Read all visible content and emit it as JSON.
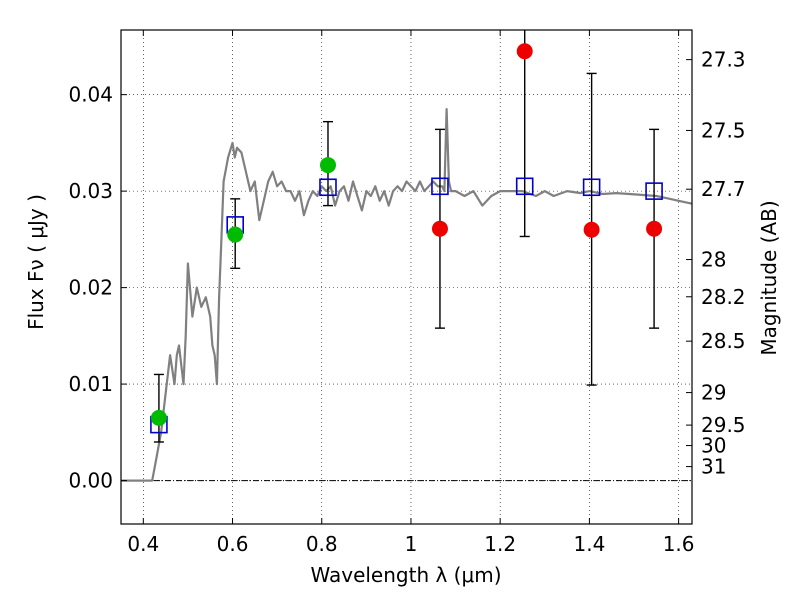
{
  "chart_data": {
    "type": "scatter",
    "xlabel": "Wavelength  λ (μm)",
    "ylabel_left": "Flux  Fν  ( μJy )",
    "ylabel_right": "Magnitude (AB)",
    "xlim": [
      0.35,
      1.63
    ],
    "ylim": [
      -0.0045,
      0.0467
    ],
    "grid": true,
    "x_ticks": [
      0.4,
      0.6,
      0.8,
      1.0,
      1.2,
      1.4,
      1.6
    ],
    "x_tick_labels": [
      "0.4",
      "0.6",
      "0.8",
      "1",
      "1.2",
      "1.4",
      "1.6"
    ],
    "y_ticks": [
      0.0,
      0.01,
      0.02,
      0.03,
      0.04
    ],
    "y_tick_labels": [
      "0.00",
      "0.01",
      "0.02",
      "0.03",
      "0.04"
    ],
    "right_ticks": [
      {
        "flux": 0.04363,
        "label": "27.3"
      },
      {
        "flux": 0.03629,
        "label": "27.5"
      },
      {
        "flux": 0.0302,
        "label": "27.7"
      },
      {
        "flux": 0.02291,
        "label": "28"
      },
      {
        "flux": 0.01905,
        "label": "28.2"
      },
      {
        "flux": 0.01445,
        "label": "28.5"
      },
      {
        "flux": 0.00912,
        "label": "29"
      },
      {
        "flux": 0.00575,
        "label": "29.5"
      },
      {
        "flux": 0.00363,
        "label": "30"
      },
      {
        "flux": 0.00145,
        "label": "31"
      }
    ],
    "model_spectrum": {
      "color": "#808080",
      "points": [
        [
          0.35,
          0.0
        ],
        [
          0.42,
          0.0
        ],
        [
          0.43,
          0.0025
        ],
        [
          0.44,
          0.005
        ],
        [
          0.45,
          0.009
        ],
        [
          0.46,
          0.013
        ],
        [
          0.47,
          0.01
        ],
        [
          0.475,
          0.013
        ],
        [
          0.48,
          0.014
        ],
        [
          0.49,
          0.01
        ],
        [
          0.495,
          0.015
        ],
        [
          0.5,
          0.0225
        ],
        [
          0.51,
          0.017
        ],
        [
          0.52,
          0.02
        ],
        [
          0.53,
          0.018
        ],
        [
          0.54,
          0.019
        ],
        [
          0.55,
          0.017
        ],
        [
          0.555,
          0.014
        ],
        [
          0.56,
          0.013
        ],
        [
          0.565,
          0.01
        ],
        [
          0.57,
          0.019
        ],
        [
          0.575,
          0.025
        ],
        [
          0.58,
          0.031
        ],
        [
          0.59,
          0.0335
        ],
        [
          0.6,
          0.035
        ],
        [
          0.605,
          0.0335
        ],
        [
          0.61,
          0.0345
        ],
        [
          0.62,
          0.034
        ],
        [
          0.63,
          0.032
        ],
        [
          0.64,
          0.03
        ],
        [
          0.65,
          0.031
        ],
        [
          0.66,
          0.027
        ],
        [
          0.67,
          0.029
        ],
        [
          0.68,
          0.031
        ],
        [
          0.69,
          0.032
        ],
        [
          0.7,
          0.0305
        ],
        [
          0.71,
          0.031
        ],
        [
          0.72,
          0.03
        ],
        [
          0.73,
          0.03
        ],
        [
          0.74,
          0.029
        ],
        [
          0.75,
          0.03
        ],
        [
          0.76,
          0.0275
        ],
        [
          0.77,
          0.029
        ],
        [
          0.78,
          0.03
        ],
        [
          0.79,
          0.0295
        ],
        [
          0.8,
          0.0305
        ],
        [
          0.81,
          0.03
        ],
        [
          0.82,
          0.0305
        ],
        [
          0.83,
          0.0285
        ],
        [
          0.84,
          0.03
        ],
        [
          0.85,
          0.0305
        ],
        [
          0.86,
          0.029
        ],
        [
          0.87,
          0.031
        ],
        [
          0.88,
          0.0295
        ],
        [
          0.89,
          0.028
        ],
        [
          0.9,
          0.03
        ],
        [
          0.91,
          0.0295
        ],
        [
          0.92,
          0.0305
        ],
        [
          0.93,
          0.029
        ],
        [
          0.94,
          0.03
        ],
        [
          0.95,
          0.0285
        ],
        [
          0.96,
          0.03
        ],
        [
          0.97,
          0.0305
        ],
        [
          0.98,
          0.03
        ],
        [
          0.99,
          0.031
        ],
        [
          1.0,
          0.0305
        ],
        [
          1.01,
          0.03
        ],
        [
          1.02,
          0.031
        ],
        [
          1.03,
          0.03
        ],
        [
          1.04,
          0.0305
        ],
        [
          1.05,
          0.031
        ],
        [
          1.06,
          0.0305
        ],
        [
          1.07,
          0.0305
        ],
        [
          1.075,
          0.03
        ],
        [
          1.08,
          0.0385
        ],
        [
          1.085,
          0.031
        ],
        [
          1.09,
          0.03
        ],
        [
          1.1,
          0.03
        ],
        [
          1.12,
          0.0295
        ],
        [
          1.14,
          0.03
        ],
        [
          1.16,
          0.0285
        ],
        [
          1.18,
          0.0295
        ],
        [
          1.2,
          0.03
        ],
        [
          1.22,
          0.03
        ],
        [
          1.25,
          0.03
        ],
        [
          1.28,
          0.0295
        ],
        [
          1.3,
          0.03
        ],
        [
          1.32,
          0.0295
        ],
        [
          1.35,
          0.03
        ],
        [
          1.38,
          0.0298
        ],
        [
          1.4,
          0.03
        ],
        [
          1.43,
          0.0297
        ],
        [
          1.46,
          0.0298
        ],
        [
          1.49,
          0.0297
        ],
        [
          1.52,
          0.0296
        ],
        [
          1.55,
          0.0295
        ],
        [
          1.58,
          0.0292
        ],
        [
          1.6,
          0.029
        ],
        [
          1.63,
          0.0287
        ]
      ]
    },
    "model_bands": {
      "color": "#0000cc",
      "points": [
        [
          0.435,
          0.0058
        ],
        [
          0.606,
          0.0265
        ],
        [
          0.814,
          0.0304
        ],
        [
          1.065,
          0.0305
        ],
        [
          1.255,
          0.0305
        ],
        [
          1.405,
          0.0304
        ],
        [
          1.545,
          0.03
        ]
      ]
    },
    "detections": {
      "color": "#00bb00",
      "points": [
        {
          "x": 0.435,
          "y": 0.0065,
          "err_lo": 0.004,
          "err_hi": 0.011
        },
        {
          "x": 0.606,
          "y": 0.0255,
          "err_lo": 0.022,
          "err_hi": 0.0292
        },
        {
          "x": 0.814,
          "y": 0.0327,
          "err_lo": 0.0285,
          "err_hi": 0.0372
        }
      ]
    },
    "upper_limits": {
      "color": "#ee0000",
      "points": [
        {
          "x": 1.065,
          "y": 0.0261,
          "err_lo": 0.0158,
          "err_hi": 0.0364
        },
        {
          "x": 1.255,
          "y": 0.0445,
          "err_lo": 0.0253,
          "err_hi": 0.047
        },
        {
          "x": 1.405,
          "y": 0.026,
          "err_lo": 0.0099,
          "err_hi": 0.0422
        },
        {
          "x": 1.545,
          "y": 0.0261,
          "err_lo": 0.0158,
          "err_hi": 0.0364
        }
      ]
    }
  }
}
